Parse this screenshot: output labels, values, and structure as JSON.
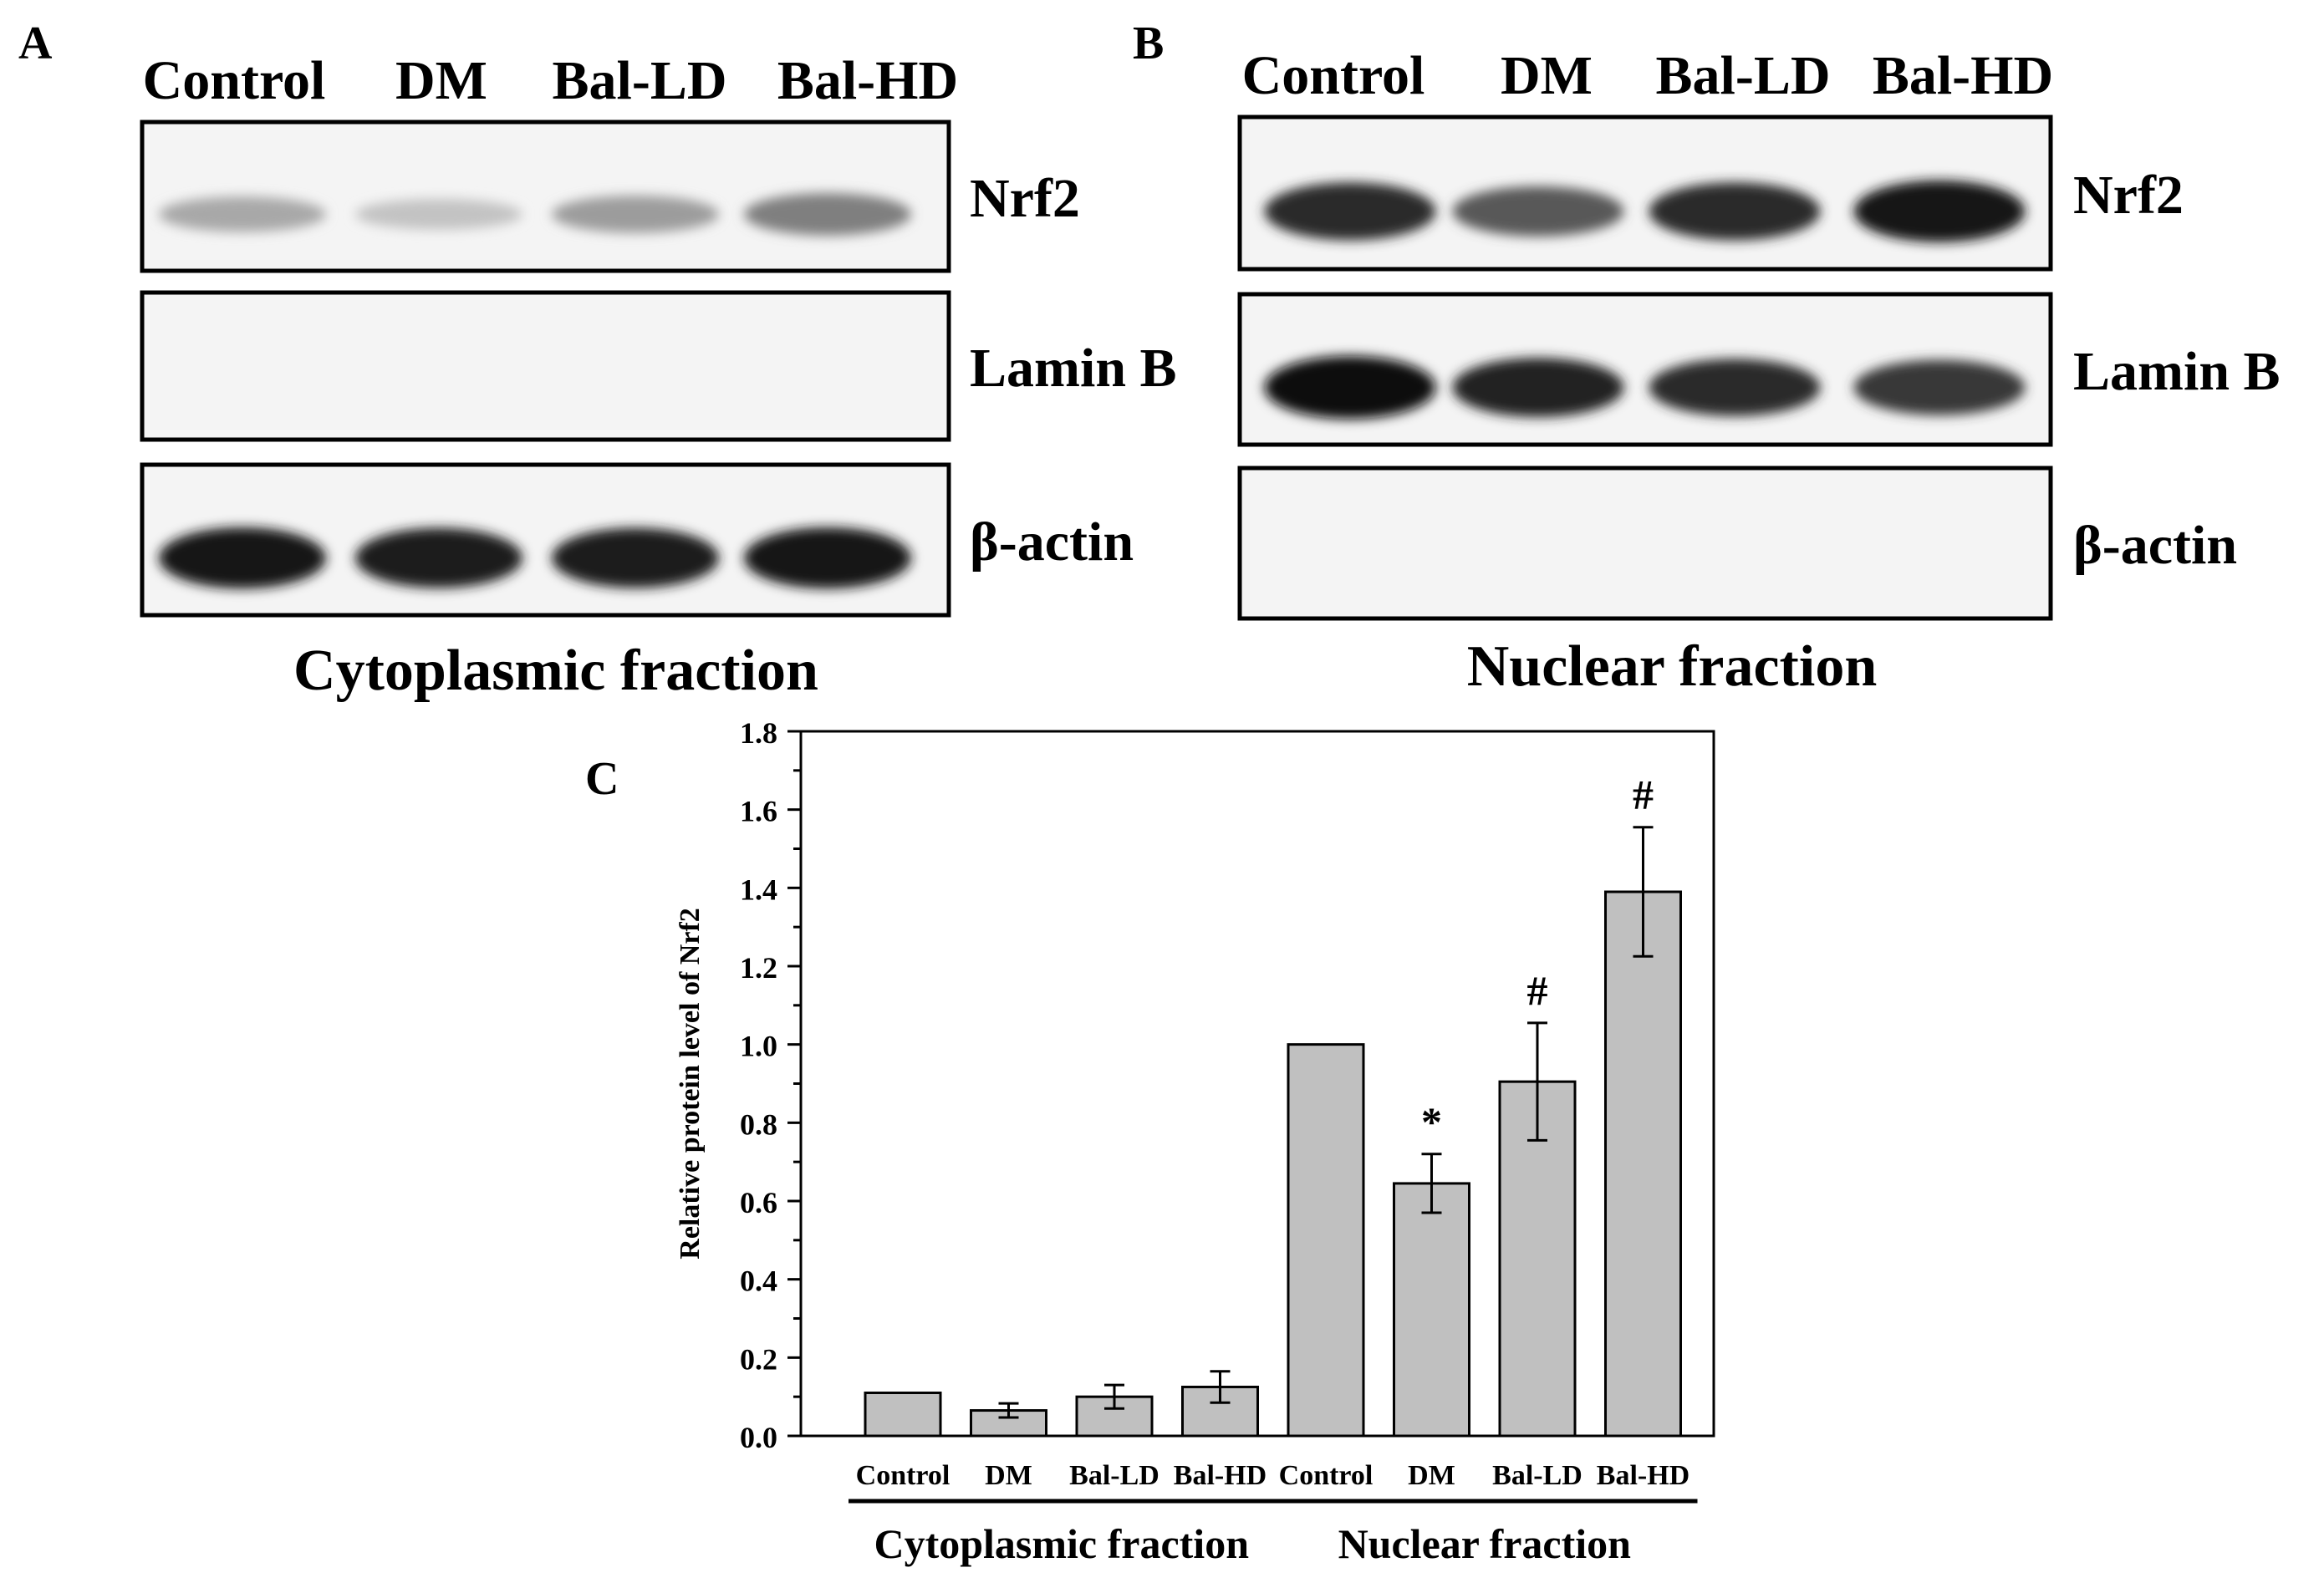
{
  "panel_a": {
    "letter": "A",
    "lanes": [
      "Control",
      "DM",
      "Bal-LD",
      "Bal-HD"
    ],
    "blots": [
      {
        "label": "Nrf2",
        "intensity": [
          0.3,
          0.18,
          0.35,
          0.48
        ]
      },
      {
        "label": "Lamin B",
        "intensity": [
          0.0,
          0.0,
          0.0,
          0.0
        ]
      },
      {
        "label": "β-actin",
        "intensity": [
          0.95,
          0.92,
          0.92,
          0.95
        ]
      }
    ],
    "caption": "Cytoplasmic fraction"
  },
  "panel_b": {
    "letter": "B",
    "lanes": [
      "Control",
      "DM",
      "Bal-LD",
      "Bal-HD"
    ],
    "blots": [
      {
        "label": "Nrf2",
        "intensity": [
          0.85,
          0.65,
          0.85,
          0.95
        ]
      },
      {
        "label": "Lamin B",
        "intensity": [
          1.0,
          0.9,
          0.85,
          0.8
        ]
      },
      {
        "label": "β-actin",
        "intensity": [
          0.0,
          0.0,
          0.0,
          0.0
        ]
      }
    ],
    "caption": "Nuclear fraction"
  },
  "chart_data": {
    "letter": "C",
    "type": "bar",
    "categories": [
      "Control",
      "DM",
      "Bal-LD",
      "Bal-HD",
      "Control",
      "DM",
      "Bal-LD",
      "Bal-HD"
    ],
    "values": [
      0.11,
      0.065,
      0.1,
      0.125,
      1.0,
      0.645,
      0.905,
      1.39
    ],
    "errors": [
      0,
      0.018,
      0.03,
      0.04,
      0,
      0.075,
      0.15,
      0.165
    ],
    "annotations": [
      "",
      "",
      "",
      "",
      "",
      "*",
      "#",
      "#"
    ],
    "groups": [
      {
        "label": "Cytoplasmic fraction",
        "from": 0,
        "to": 3
      },
      {
        "label": "Nuclear fraction",
        "from": 4,
        "to": 7
      }
    ],
    "ylabel": "Relative protein level of Nrf2",
    "ylim": [
      0,
      1.8
    ],
    "yticks": [
      "0.0",
      "0.2",
      "0.4",
      "0.6",
      "0.8",
      "1.0",
      "1.2",
      "1.4",
      "1.6",
      "1.8"
    ],
    "bar_color": "#c0c0c0",
    "grid": false
  }
}
